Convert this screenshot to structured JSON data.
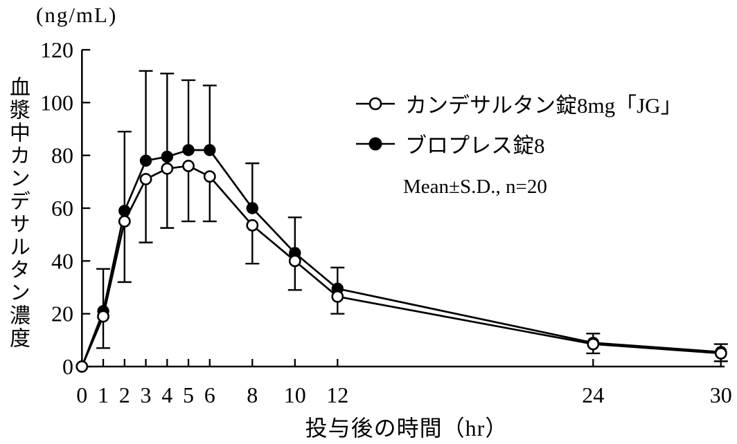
{
  "chart": {
    "unit_label": "(ng/mL)",
    "ylabel_vertical": "血漿中カンデサルタン濃度",
    "xlabel": "投与後の時間（hr）",
    "annotation": "Mean±S.D., n=20",
    "foreground_color": "#000000",
    "background_color": "#ffffff"
  },
  "chart_data": {
    "type": "line",
    "title": "",
    "xlabel": "投与後の時間（hr）",
    "ylabel": "血漿中カンデサルタン濃度",
    "y_unit": "ng/mL",
    "annotation": "Mean±S.D., n=20",
    "legend_position": "upper-right-inside",
    "grid": false,
    "xlim": [
      0,
      30.5
    ],
    "ylim": [
      0,
      120
    ],
    "xticks": [
      0,
      1,
      2,
      3,
      4,
      5,
      6,
      8,
      10,
      12,
      24,
      30
    ],
    "yticks": [
      0,
      20,
      40,
      60,
      80,
      100,
      120
    ],
    "x": [
      0,
      1,
      2,
      3,
      4,
      5,
      6,
      8,
      10,
      12,
      24,
      30
    ],
    "series": [
      {
        "name": "カンデサルタン錠8mg「JG」",
        "marker": "open-circle",
        "sd_bar_direction": "down",
        "values": [
          0,
          19,
          55,
          71,
          75,
          76,
          72,
          53.5,
          40,
          26.5,
          8.5,
          5
        ],
        "sd": [
          0,
          12,
          23,
          24,
          22.5,
          21,
          17,
          14.5,
          11,
          6.5,
          3.5,
          3
        ]
      },
      {
        "name": "ブロプレス錠8",
        "marker": "filled-circle",
        "sd_bar_direction": "up",
        "values": [
          0,
          21,
          59,
          78,
          79.5,
          82,
          82,
          60,
          43,
          29.5,
          9,
          5.5
        ],
        "sd": [
          0,
          16,
          30,
          34,
          31.5,
          26.5,
          24.5,
          17,
          13.5,
          8,
          3.5,
          3
        ]
      }
    ]
  }
}
